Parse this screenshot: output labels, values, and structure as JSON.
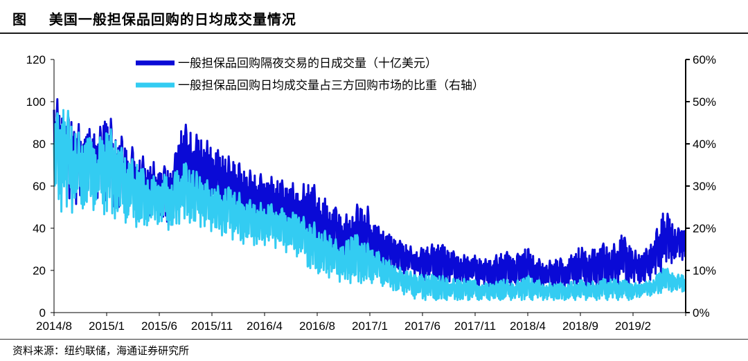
{
  "header": {
    "title": "图    美国一般担保品回购的日均成交量情况"
  },
  "footer": {
    "source": "资料来源：纽约联储，海通证券研究所"
  },
  "colors": {
    "left_series": "#0a0ad6",
    "right_series": "#33ccf2"
  },
  "chart_data": {
    "type": "line",
    "x_tick_labels": [
      "2014/8",
      "2015/1",
      "2015/6",
      "2015/11",
      "2016/4",
      "2016/8",
      "2017/1",
      "2017/6",
      "2017/11",
      "2018/4",
      "2018/9",
      "2019/2"
    ],
    "x_range": [
      "2014-08",
      "2019-06"
    ],
    "y_left": {
      "range": [
        0,
        120
      ],
      "ticks": [
        "0",
        "20",
        "40",
        "60",
        "80",
        "100",
        "120"
      ]
    },
    "y_right": {
      "range": [
        0,
        60
      ],
      "ticks": [
        "0%",
        "10%",
        "20%",
        "30%",
        "40%",
        "50%",
        "60%"
      ]
    },
    "grid": false,
    "legend_position": "top-center",
    "series": [
      {
        "name": "一般担保品回购隔夜交易的日成交量（十亿美元）",
        "axis": "left",
        "monthly_range": [
          [
            "2014-08",
            60,
            104
          ],
          [
            "2014-09",
            55,
            95
          ],
          [
            "2014-10",
            50,
            90
          ],
          [
            "2014-11",
            55,
            88
          ],
          [
            "2014-12",
            52,
            85
          ],
          [
            "2015-01",
            50,
            95
          ],
          [
            "2015-02",
            48,
            85
          ],
          [
            "2015-03",
            45,
            80
          ],
          [
            "2015-04",
            42,
            75
          ],
          [
            "2015-05",
            45,
            72
          ],
          [
            "2015-06",
            45,
            70
          ],
          [
            "2015-07",
            40,
            68
          ],
          [
            "2015-08",
            55,
            91
          ],
          [
            "2015-09",
            52,
            85
          ],
          [
            "2015-10",
            50,
            83
          ],
          [
            "2015-11",
            48,
            78
          ],
          [
            "2015-12",
            46,
            75
          ],
          [
            "2016-01",
            44,
            72
          ],
          [
            "2016-02",
            40,
            68
          ],
          [
            "2016-03",
            40,
            66
          ],
          [
            "2016-04",
            40,
            65
          ],
          [
            "2016-05",
            38,
            63
          ],
          [
            "2016-06",
            36,
            62
          ],
          [
            "2016-07",
            35,
            60
          ],
          [
            "2016-08",
            30,
            63
          ],
          [
            "2016-09",
            25,
            55
          ],
          [
            "2016-10",
            24,
            52
          ],
          [
            "2016-11",
            22,
            45
          ],
          [
            "2016-12",
            20,
            50
          ],
          [
            "2017-01",
            20,
            54
          ],
          [
            "2017-02",
            22,
            42
          ],
          [
            "2017-03",
            21,
            38
          ],
          [
            "2017-04",
            20,
            35
          ],
          [
            "2017-05",
            18,
            32
          ],
          [
            "2017-06",
            16,
            30
          ],
          [
            "2017-07",
            15,
            32
          ],
          [
            "2017-08",
            14,
            33
          ],
          [
            "2017-09",
            14,
            30
          ],
          [
            "2017-10",
            13,
            27
          ],
          [
            "2017-11",
            13,
            28
          ],
          [
            "2017-12",
            12,
            25
          ],
          [
            "2018-01",
            11,
            26
          ],
          [
            "2018-02",
            11,
            30
          ],
          [
            "2018-03",
            12,
            26
          ],
          [
            "2018-04",
            12,
            32
          ],
          [
            "2018-05",
            11,
            26
          ],
          [
            "2018-06",
            11,
            24
          ],
          [
            "2018-07",
            11,
            26
          ],
          [
            "2018-08",
            11,
            25
          ],
          [
            "2018-09",
            12,
            32
          ],
          [
            "2018-10",
            12,
            28
          ],
          [
            "2018-11",
            12,
            34
          ],
          [
            "2018-12",
            13,
            30
          ],
          [
            "2019-01",
            13,
            38
          ],
          [
            "2019-02",
            14,
            30
          ],
          [
            "2019-03",
            14,
            28
          ],
          [
            "2019-04",
            16,
            35
          ],
          [
            "2019-05",
            20,
            50
          ],
          [
            "2019-06",
            25,
            40
          ]
        ]
      },
      {
        "name": "一般担保品回购日均成交量占三方回购市场的比重（右轴）",
        "axis": "right",
        "monthly_range": [
          [
            "2014-08",
            26,
            46
          ],
          [
            "2014-09",
            23,
            50
          ],
          [
            "2014-10",
            24,
            43
          ],
          [
            "2014-11",
            25,
            42
          ],
          [
            "2014-12",
            24,
            40
          ],
          [
            "2015-01",
            23,
            45
          ],
          [
            "2015-02",
            22,
            40
          ],
          [
            "2015-03",
            21,
            37
          ],
          [
            "2015-04",
            20,
            35
          ],
          [
            "2015-05",
            21,
            32
          ],
          [
            "2015-06",
            21,
            33
          ],
          [
            "2015-07",
            19,
            32
          ],
          [
            "2015-08",
            22,
            36
          ],
          [
            "2015-09",
            21,
            34
          ],
          [
            "2015-10",
            20,
            32
          ],
          [
            "2015-11",
            19,
            30
          ],
          [
            "2015-12",
            18,
            30
          ],
          [
            "2016-01",
            17,
            29
          ],
          [
            "2016-02",
            16,
            27
          ],
          [
            "2016-03",
            16,
            26
          ],
          [
            "2016-04",
            16,
            26
          ],
          [
            "2016-05",
            15,
            25
          ],
          [
            "2016-06",
            14,
            24
          ],
          [
            "2016-07",
            13,
            23
          ],
          [
            "2016-08",
            10,
            22
          ],
          [
            "2016-09",
            9,
            20
          ],
          [
            "2016-10",
            8,
            18
          ],
          [
            "2016-11",
            7,
            16
          ],
          [
            "2016-12",
            7,
            19
          ],
          [
            "2017-01",
            7,
            17
          ],
          [
            "2017-02",
            7,
            15
          ],
          [
            "2017-03",
            6,
            13
          ],
          [
            "2017-04",
            5,
            11
          ],
          [
            "2017-05",
            4,
            10
          ],
          [
            "2017-06",
            3,
            9
          ],
          [
            "2017-07",
            3,
            9
          ],
          [
            "2017-08",
            3,
            9
          ],
          [
            "2017-09",
            3,
            8
          ],
          [
            "2017-10",
            3,
            8
          ],
          [
            "2017-11",
            3,
            8
          ],
          [
            "2017-12",
            3,
            7
          ],
          [
            "2018-01",
            3,
            7
          ],
          [
            "2018-02",
            3,
            8
          ],
          [
            "2018-03",
            3,
            7
          ],
          [
            "2018-04",
            3,
            9
          ],
          [
            "2018-05",
            3,
            8
          ],
          [
            "2018-06",
            3,
            7
          ],
          [
            "2018-07",
            3,
            7
          ],
          [
            "2018-08",
            3,
            7
          ],
          [
            "2018-09",
            3,
            8
          ],
          [
            "2018-10",
            3,
            7
          ],
          [
            "2018-11",
            3,
            8
          ],
          [
            "2018-12",
            3,
            8
          ],
          [
            "2019-01",
            3,
            8
          ],
          [
            "2019-02",
            3,
            7
          ],
          [
            "2019-03",
            4,
            7
          ],
          [
            "2019-04",
            4,
            8
          ],
          [
            "2019-05",
            5,
            11
          ],
          [
            "2019-06",
            5,
            9
          ]
        ]
      }
    ]
  }
}
